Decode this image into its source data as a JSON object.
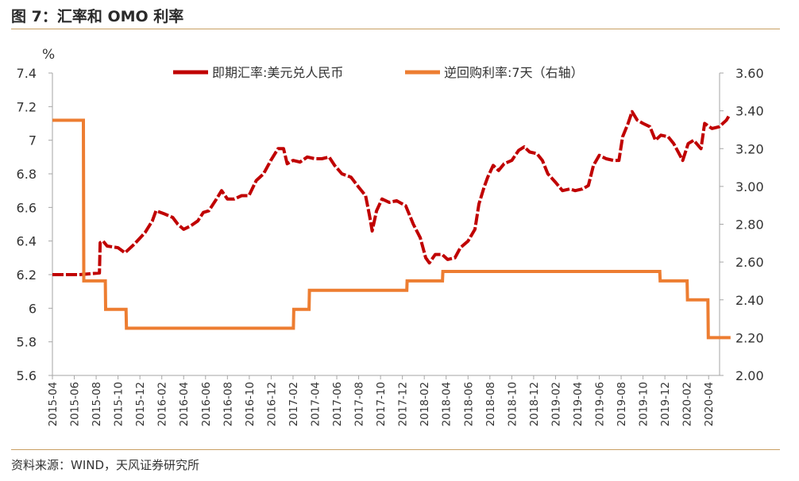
{
  "figure": {
    "title": "图 7：汇率和 OMO 利率",
    "source": "资料来源：WIND，天风证券研究所"
  },
  "colors": {
    "fx": "#c00000",
    "omo": "#ed7d31",
    "rule": "#c9a063"
  },
  "chart_data": {
    "type": "line",
    "left_unit": "%",
    "left_ylim": [
      5.6,
      7.4
    ],
    "left_ticks": [
      "7.4",
      "7.2",
      "7",
      "6.8",
      "6.6",
      "6.4",
      "6.2",
      "6",
      "5.8",
      "5.6"
    ],
    "right_ylim": [
      2.0,
      3.6
    ],
    "right_ticks": [
      "3.60",
      "3.40",
      "3.20",
      "3.00",
      "2.80",
      "2.60",
      "2.40",
      "2.20",
      "2.00"
    ],
    "x_range": [
      "2015-04",
      "2020-05"
    ],
    "x_ticks": [
      "2015-04",
      "2015-06",
      "2015-08",
      "2015-10",
      "2015-12",
      "2016-02",
      "2016-04",
      "2016-06",
      "2016-08",
      "2016-10",
      "2016-12",
      "2017-02",
      "2017-04",
      "2017-06",
      "2017-08",
      "2017-10",
      "2017-12",
      "2018-02",
      "2018-04",
      "2018-06",
      "2018-08",
      "2018-10",
      "2018-12",
      "2019-02",
      "2019-04",
      "2019-06",
      "2019-08",
      "2019-10",
      "2019-12",
      "2020-02",
      "2020-04"
    ],
    "legend_position": "top",
    "series": [
      {
        "name": "即期汇率:美元兑人民币",
        "axis": "left",
        "style": "dashed",
        "points": [
          [
            "2015-04-01",
            6.2
          ],
          [
            "2015-06-15",
            6.2
          ],
          [
            "2015-08-10",
            6.21
          ],
          [
            "2015-08-12",
            6.39
          ],
          [
            "2015-08-20",
            6.4
          ],
          [
            "2015-09-01",
            6.37
          ],
          [
            "2015-10-01",
            6.36
          ],
          [
            "2015-10-20",
            6.33
          ],
          [
            "2015-11-15",
            6.38
          ],
          [
            "2015-12-15",
            6.45
          ],
          [
            "2016-01-05",
            6.52
          ],
          [
            "2016-01-15",
            6.58
          ],
          [
            "2016-02-10",
            6.56
          ],
          [
            "2016-03-01",
            6.54
          ],
          [
            "2016-03-15",
            6.5
          ],
          [
            "2016-04-01",
            6.47
          ],
          [
            "2016-04-20",
            6.49
          ],
          [
            "2016-05-10",
            6.52
          ],
          [
            "2016-05-25",
            6.57
          ],
          [
            "2016-06-10",
            6.58
          ],
          [
            "2016-07-01",
            6.65
          ],
          [
            "2016-07-15",
            6.7
          ],
          [
            "2016-08-01",
            6.65
          ],
          [
            "2016-08-20",
            6.65
          ],
          [
            "2016-09-10",
            6.67
          ],
          [
            "2016-09-30",
            6.67
          ],
          [
            "2016-10-20",
            6.76
          ],
          [
            "2016-11-10",
            6.8
          ],
          [
            "2016-11-30",
            6.88
          ],
          [
            "2016-12-20",
            6.95
          ],
          [
            "2017-01-05",
            6.95
          ],
          [
            "2017-01-15",
            6.86
          ],
          [
            "2017-02-01",
            6.88
          ],
          [
            "2017-02-20",
            6.87
          ],
          [
            "2017-03-10",
            6.9
          ],
          [
            "2017-04-01",
            6.89
          ],
          [
            "2017-04-20",
            6.89
          ],
          [
            "2017-05-10",
            6.9
          ],
          [
            "2017-05-25",
            6.85
          ],
          [
            "2017-06-15",
            6.8
          ],
          [
            "2017-07-10",
            6.78
          ],
          [
            "2017-08-01",
            6.72
          ],
          [
            "2017-08-20",
            6.67
          ],
          [
            "2017-09-01",
            6.55
          ],
          [
            "2017-09-08",
            6.46
          ],
          [
            "2017-09-20",
            6.58
          ],
          [
            "2017-10-05",
            6.65
          ],
          [
            "2017-10-25",
            6.63
          ],
          [
            "2017-11-15",
            6.64
          ],
          [
            "2017-12-10",
            6.61
          ],
          [
            "2018-01-01",
            6.5
          ],
          [
            "2018-01-20",
            6.42
          ],
          [
            "2018-02-05",
            6.3
          ],
          [
            "2018-02-15",
            6.27
          ],
          [
            "2018-03-01",
            6.32
          ],
          [
            "2018-03-20",
            6.32
          ],
          [
            "2018-04-05",
            6.29
          ],
          [
            "2018-04-25",
            6.3
          ],
          [
            "2018-05-10",
            6.36
          ],
          [
            "2018-06-01",
            6.4
          ],
          [
            "2018-06-20",
            6.47
          ],
          [
            "2018-07-01",
            6.62
          ],
          [
            "2018-07-15",
            6.72
          ],
          [
            "2018-07-25",
            6.78
          ],
          [
            "2018-08-10",
            6.85
          ],
          [
            "2018-08-25",
            6.82
          ],
          [
            "2018-09-10",
            6.86
          ],
          [
            "2018-10-01",
            6.88
          ],
          [
            "2018-10-20",
            6.94
          ],
          [
            "2018-11-05",
            6.96
          ],
          [
            "2018-11-20",
            6.93
          ],
          [
            "2018-12-10",
            6.92
          ],
          [
            "2018-12-25",
            6.88
          ],
          [
            "2019-01-10",
            6.8
          ],
          [
            "2019-02-01",
            6.75
          ],
          [
            "2019-02-20",
            6.7
          ],
          [
            "2019-03-10",
            6.71
          ],
          [
            "2019-03-25",
            6.7
          ],
          [
            "2019-04-15",
            6.71
          ],
          [
            "2019-05-01",
            6.73
          ],
          [
            "2019-05-15",
            6.85
          ],
          [
            "2019-06-01",
            6.91
          ],
          [
            "2019-06-20",
            6.89
          ],
          [
            "2019-07-10",
            6.88
          ],
          [
            "2019-07-25",
            6.88
          ],
          [
            "2019-08-05",
            7.02
          ],
          [
            "2019-08-20",
            7.1
          ],
          [
            "2019-09-01",
            7.17
          ],
          [
            "2019-09-15",
            7.12
          ],
          [
            "2019-10-01",
            7.1
          ],
          [
            "2019-10-20",
            7.08
          ],
          [
            "2019-11-05",
            7.0
          ],
          [
            "2019-11-20",
            7.03
          ],
          [
            "2019-12-10",
            7.02
          ],
          [
            "2019-12-25",
            6.98
          ],
          [
            "2020-01-10",
            6.92
          ],
          [
            "2020-01-20",
            6.88
          ],
          [
            "2020-02-05",
            6.98
          ],
          [
            "2020-02-20",
            7.0
          ],
          [
            "2020-03-10",
            6.95
          ],
          [
            "2020-03-20",
            7.1
          ],
          [
            "2020-04-10",
            7.07
          ],
          [
            "2020-04-30",
            7.08
          ],
          [
            "2020-05-20",
            7.12
          ],
          [
            "2020-05-28",
            7.15
          ]
        ]
      },
      {
        "name": "逆回购利率:7天（右轴）",
        "axis": "right",
        "style": "solid-step",
        "points": [
          [
            "2015-04-01",
            3.35
          ],
          [
            "2015-06-26",
            3.35
          ],
          [
            "2015-06-27",
            2.5
          ],
          [
            "2015-08-26",
            2.5
          ],
          [
            "2015-08-27",
            2.35
          ],
          [
            "2015-10-23",
            2.35
          ],
          [
            "2015-10-24",
            2.25
          ],
          [
            "2017-02-02",
            2.25
          ],
          [
            "2017-02-03",
            2.35
          ],
          [
            "2017-03-15",
            2.35
          ],
          [
            "2017-03-16",
            2.45
          ],
          [
            "2017-12-13",
            2.45
          ],
          [
            "2017-12-14",
            2.5
          ],
          [
            "2018-03-21",
            2.5
          ],
          [
            "2018-03-22",
            2.55
          ],
          [
            "2019-11-17",
            2.55
          ],
          [
            "2019-11-18",
            2.5
          ],
          [
            "2020-02-02",
            2.5
          ],
          [
            "2020-02-03",
            2.4
          ],
          [
            "2020-03-29",
            2.4
          ],
          [
            "2020-03-30",
            2.2
          ],
          [
            "2020-05-31",
            2.2
          ]
        ]
      }
    ]
  }
}
